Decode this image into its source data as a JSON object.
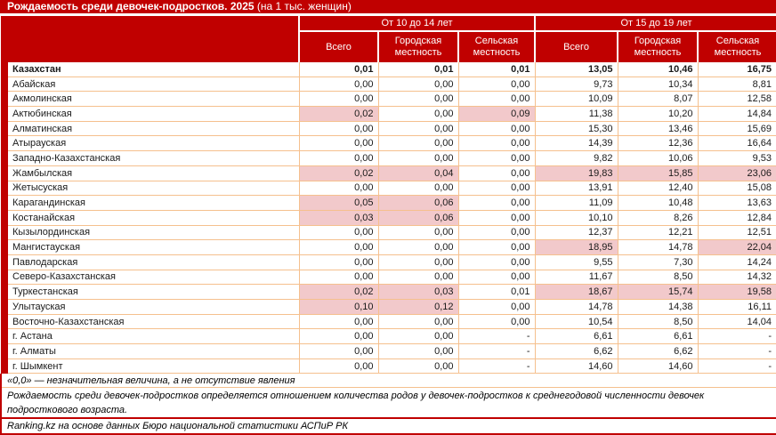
{
  "title": {
    "bold": "Рождаемость среди девочек-подростков. 2025",
    "normal": " (на 1 тыс. женщин)"
  },
  "chart_data": {
    "type": "table",
    "title": "Рождаемость среди девочек-подростков. 2025 (на 1 тыс. женщин)",
    "age_groups": [
      "От 10 до 14 лет",
      "От 15 до 19 лет"
    ],
    "sub_columns": [
      "Всего",
      "Городская местность",
      "Сельская местность"
    ],
    "rows": [
      {
        "region": "Казахстан",
        "bold": true,
        "values": [
          "0,01",
          "0,01",
          "0,01",
          "13,05",
          "10,46",
          "16,75"
        ],
        "highlight": [
          0,
          0,
          0,
          0,
          0,
          0
        ]
      },
      {
        "region": "Абайская",
        "values": [
          "0,00",
          "0,00",
          "0,00",
          "9,73",
          "10,34",
          "8,81"
        ],
        "highlight": [
          0,
          0,
          0,
          0,
          0,
          0
        ]
      },
      {
        "region": "Акмолинская",
        "values": [
          "0,00",
          "0,00",
          "0,00",
          "10,09",
          "8,07",
          "12,58"
        ],
        "highlight": [
          0,
          0,
          0,
          0,
          0,
          0
        ]
      },
      {
        "region": "Актюбинская",
        "values": [
          "0,02",
          "0,00",
          "0,09",
          "11,38",
          "10,20",
          "14,84"
        ],
        "highlight": [
          1,
          0,
          1,
          0,
          0,
          0
        ]
      },
      {
        "region": "Алматинская",
        "values": [
          "0,00",
          "0,00",
          "0,00",
          "15,30",
          "13,46",
          "15,69"
        ],
        "highlight": [
          0,
          0,
          0,
          0,
          0,
          0
        ]
      },
      {
        "region": "Атырауская",
        "values": [
          "0,00",
          "0,00",
          "0,00",
          "14,39",
          "12,36",
          "16,64"
        ],
        "highlight": [
          0,
          0,
          0,
          0,
          0,
          0
        ]
      },
      {
        "region": "Западно-Казахстанская",
        "values": [
          "0,00",
          "0,00",
          "0,00",
          "9,82",
          "10,06",
          "9,53"
        ],
        "highlight": [
          0,
          0,
          0,
          0,
          0,
          0
        ]
      },
      {
        "region": "Жамбылская",
        "values": [
          "0,02",
          "0,04",
          "0,00",
          "19,83",
          "15,85",
          "23,06"
        ],
        "highlight": [
          1,
          1,
          0,
          1,
          1,
          1
        ]
      },
      {
        "region": "Жетысуская",
        "values": [
          "0,00",
          "0,00",
          "0,00",
          "13,91",
          "12,40",
          "15,08"
        ],
        "highlight": [
          0,
          0,
          0,
          0,
          0,
          0
        ]
      },
      {
        "region": "Карагандинская",
        "values": [
          "0,05",
          "0,06",
          "0,00",
          "11,09",
          "10,48",
          "13,63"
        ],
        "highlight": [
          1,
          1,
          0,
          0,
          0,
          0
        ]
      },
      {
        "region": "Костанайская",
        "values": [
          "0,03",
          "0,06",
          "0,00",
          "10,10",
          "8,26",
          "12,84"
        ],
        "highlight": [
          1,
          1,
          0,
          0,
          0,
          0
        ]
      },
      {
        "region": "Кызылординская",
        "values": [
          "0,00",
          "0,00",
          "0,00",
          "12,37",
          "12,21",
          "12,51"
        ],
        "highlight": [
          0,
          0,
          0,
          0,
          0,
          0
        ]
      },
      {
        "region": "Мангистауская",
        "values": [
          "0,00",
          "0,00",
          "0,00",
          "18,95",
          "14,78",
          "22,04"
        ],
        "highlight": [
          0,
          0,
          0,
          1,
          0,
          1
        ]
      },
      {
        "region": "Павлодарская",
        "values": [
          "0,00",
          "0,00",
          "0,00",
          "9,55",
          "7,30",
          "14,24"
        ],
        "highlight": [
          0,
          0,
          0,
          0,
          0,
          0
        ]
      },
      {
        "region": "Северо-Казахстанская",
        "values": [
          "0,00",
          "0,00",
          "0,00",
          "11,67",
          "8,50",
          "14,32"
        ],
        "highlight": [
          0,
          0,
          0,
          0,
          0,
          0
        ]
      },
      {
        "region": "Туркестанская",
        "values": [
          "0,02",
          "0,03",
          "0,01",
          "18,67",
          "15,74",
          "19,58"
        ],
        "highlight": [
          1,
          1,
          0,
          1,
          1,
          1
        ]
      },
      {
        "region": "Улытауская",
        "values": [
          "0,10",
          "0,12",
          "0,00",
          "14,78",
          "14,38",
          "16,11"
        ],
        "highlight": [
          1,
          1,
          0,
          0,
          0,
          0
        ]
      },
      {
        "region": "Восточно-Казахстанская",
        "values": [
          "0,00",
          "0,00",
          "0,00",
          "10,54",
          "8,50",
          "14,04"
        ],
        "highlight": [
          0,
          0,
          0,
          0,
          0,
          0
        ]
      },
      {
        "region": "г. Астана",
        "values": [
          "0,00",
          "0,00",
          "-",
          "6,61",
          "6,61",
          "-"
        ],
        "highlight": [
          0,
          0,
          0,
          0,
          0,
          0
        ]
      },
      {
        "region": "г. Алматы",
        "values": [
          "0,00",
          "0,00",
          "-",
          "6,62",
          "6,62",
          "-"
        ],
        "highlight": [
          0,
          0,
          0,
          0,
          0,
          0
        ]
      },
      {
        "region": "г. Шымкент",
        "values": [
          "0,00",
          "0,00",
          "-",
          "14,60",
          "14,60",
          "-"
        ],
        "highlight": [
          0,
          0,
          0,
          0,
          0,
          0
        ]
      }
    ]
  },
  "footnotes": {
    "zero_note": "«0,0» — незначительная величина, а не отсутствие явления",
    "method_note": "Рождаемость среди девочек-подростков определяется отношением количества родов у девочек-подростков к среднегодовой численности девочек подросткового возраста.",
    "source": "Ranking.kz на основе данных Бюро национальной статистики АСПиР РК"
  },
  "colors": {
    "header_red": "#C00000",
    "highlight_pink": "#F2C9CB",
    "border_peach": "#F5C08E",
    "header_text": "#FFFFFF",
    "body_text": "#1A1A1A"
  }
}
